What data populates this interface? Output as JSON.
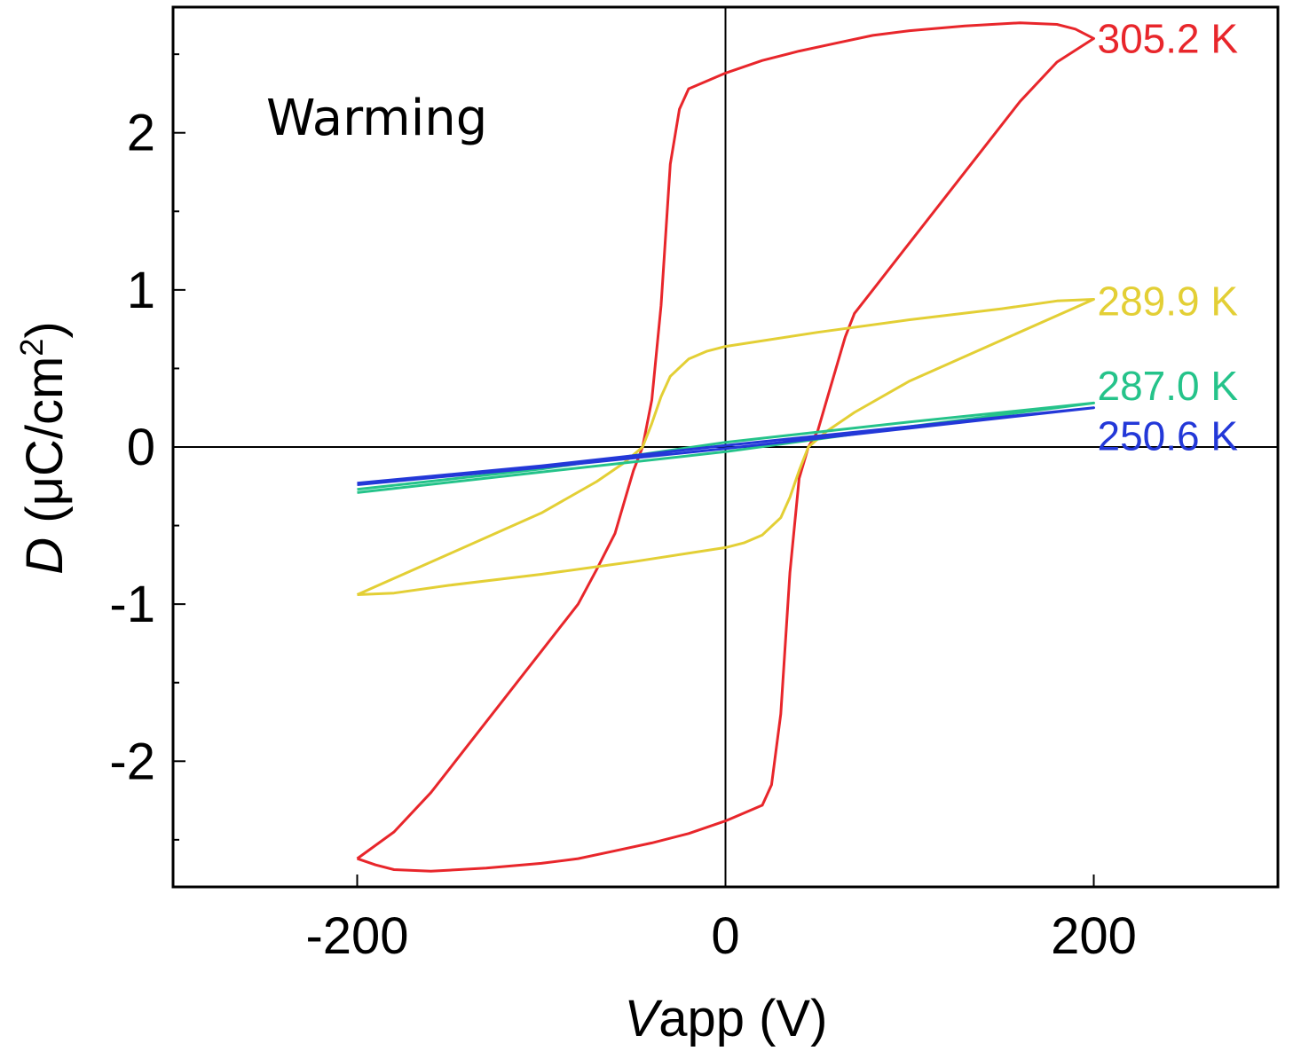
{
  "chart_data": {
    "type": "line",
    "title": "",
    "annotation": "Warming",
    "xlabel": {
      "italic": "V",
      "rest": "app (V)"
    },
    "ylabel": {
      "italic": "D",
      "rest": " (μC/cm",
      "sup": "2",
      "close": ")"
    },
    "xlim": [
      -300,
      300
    ],
    "ylim": [
      -2.8,
      2.8
    ],
    "xticks": [
      -200,
      0,
      200
    ],
    "xtick_labels": [
      "-200",
      "0",
      "200"
    ],
    "yticks": [
      -2,
      -1,
      0,
      1,
      2
    ],
    "ytick_labels": [
      "-2",
      "-1",
      "0",
      "1",
      "2"
    ],
    "grid": false,
    "zero_lines": true,
    "series": [
      {
        "name": "305.2 K",
        "color": "#e8262b",
        "label_anchor": [
          200,
          2.6
        ],
        "x": [
          -200,
          -180,
          -160,
          -140,
          -120,
          -100,
          -80,
          -70,
          -60,
          -55,
          -50,
          -45,
          -40,
          -35,
          -30,
          -25,
          -20,
          -10,
          0,
          20,
          40,
          60,
          80,
          100,
          130,
          160,
          180,
          190,
          200,
          180,
          160,
          140,
          120,
          100,
          80,
          70,
          65,
          60,
          55,
          50,
          45,
          40,
          35,
          30,
          25,
          20,
          10,
          0,
          -20,
          -40,
          -60,
          -80,
          -100,
          -130,
          -160,
          -180,
          -190,
          -200
        ],
        "y": [
          -2.62,
          -2.45,
          -2.2,
          -1.9,
          -1.6,
          -1.3,
          -1.0,
          -0.78,
          -0.55,
          -0.35,
          -0.15,
          0.0,
          0.3,
          0.9,
          1.8,
          2.15,
          2.28,
          2.33,
          2.38,
          2.46,
          2.52,
          2.57,
          2.62,
          2.65,
          2.68,
          2.7,
          2.69,
          2.66,
          2.6,
          2.45,
          2.2,
          1.9,
          1.6,
          1.3,
          1.0,
          0.85,
          0.7,
          0.5,
          0.3,
          0.1,
          0.0,
          -0.2,
          -0.8,
          -1.7,
          -2.15,
          -2.28,
          -2.33,
          -2.38,
          -2.46,
          -2.52,
          -2.57,
          -2.62,
          -2.65,
          -2.68,
          -2.7,
          -2.69,
          -2.66,
          -2.62
        ]
      },
      {
        "name": "289.9 K",
        "color": "#e3cf35",
        "label_anchor": [
          200,
          0.93
        ],
        "x": [
          -200,
          -150,
          -100,
          -70,
          -55,
          -45,
          -40,
          -35,
          -30,
          -20,
          -10,
          0,
          50,
          100,
          150,
          180,
          200,
          150,
          100,
          70,
          55,
          45,
          40,
          35,
          30,
          20,
          10,
          0,
          -50,
          -100,
          -150,
          -180,
          -200
        ],
        "y": [
          -0.94,
          -0.68,
          -0.42,
          -0.22,
          -0.1,
          0.0,
          0.15,
          0.32,
          0.45,
          0.56,
          0.61,
          0.64,
          0.73,
          0.81,
          0.88,
          0.93,
          0.94,
          0.68,
          0.42,
          0.22,
          0.1,
          0.0,
          -0.15,
          -0.32,
          -0.45,
          -0.56,
          -0.61,
          -0.64,
          -0.73,
          -0.81,
          -0.88,
          -0.93,
          -0.94
        ]
      },
      {
        "name": "287.0 K",
        "color": "#25c38a",
        "label_anchor": [
          200,
          0.39
        ],
        "x": [
          -200,
          -100,
          0,
          100,
          200,
          100,
          0,
          -100,
          -200
        ],
        "y": [
          -0.27,
          -0.14,
          0.03,
          0.16,
          0.28,
          0.13,
          -0.03,
          -0.16,
          -0.29
        ]
      },
      {
        "name": "250.6 K",
        "color": "#2338d8",
        "label_anchor": [
          200,
          0.07
        ],
        "x": [
          -200,
          -100,
          0,
          100,
          200,
          100,
          0,
          -100,
          -200
        ],
        "y": [
          -0.23,
          -0.12,
          0.01,
          0.13,
          0.25,
          0.12,
          -0.01,
          -0.13,
          -0.24
        ]
      }
    ]
  }
}
